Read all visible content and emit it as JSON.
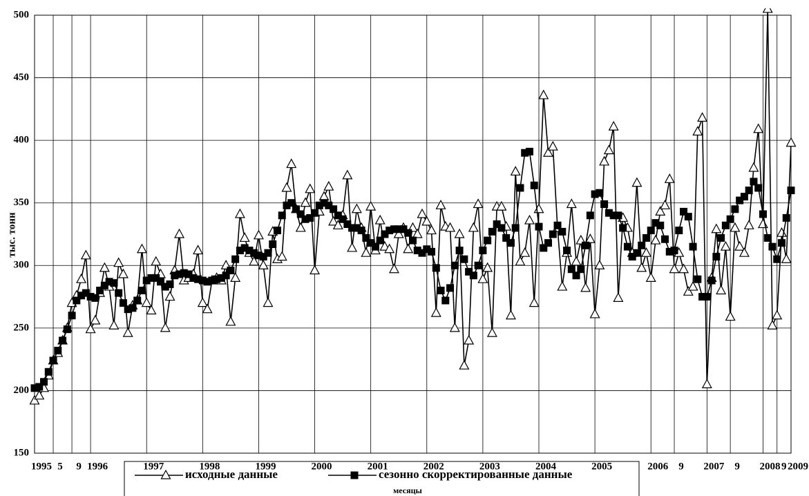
{
  "chart_data": {
    "type": "line",
    "y_label": "тыс. тонн",
    "x_label": "месяцы",
    "xlim": [
      0,
      162
    ],
    "xticks": [
      {
        "value": 0,
        "label": "1995"
      },
      {
        "value": 4,
        "label": "5"
      },
      {
        "value": 8,
        "label": "9"
      },
      {
        "value": 12,
        "label": "1996"
      },
      {
        "value": 24,
        "label": "1997"
      },
      {
        "value": 36,
        "label": "1998"
      },
      {
        "value": 48,
        "label": "1999"
      },
      {
        "value": 60,
        "label": "2000"
      },
      {
        "value": 72,
        "label": "2001"
      },
      {
        "value": 84,
        "label": "2002"
      },
      {
        "value": 96,
        "label": "2003"
      },
      {
        "value": 108,
        "label": "2004"
      },
      {
        "value": 120,
        "label": "2005"
      },
      {
        "value": 132,
        "label": "2006"
      },
      {
        "value": 137,
        "label": "9"
      },
      {
        "value": 144,
        "label": "2007"
      },
      {
        "value": 149,
        "label": "9"
      },
      {
        "value": 156,
        "label": "2008"
      },
      {
        "value": 159,
        "label": "9"
      },
      {
        "value": 162,
        "label": "2009"
      }
    ],
    "ylim": [
      150,
      500
    ],
    "yticks": [
      150,
      200,
      250,
      300,
      350,
      400,
      450,
      500
    ],
    "grid": true,
    "series": [
      {
        "name": "исходные данные",
        "color": "#000000",
        "marker": "triangle",
        "values": [
          192,
          196,
          202,
          212,
          224,
          230,
          240,
          250,
          270,
          276,
          289,
          308,
          249,
          256,
          278,
          298,
          283,
          252,
          302,
          293,
          246,
          268,
          272,
          313,
          270,
          264,
          303,
          293,
          250,
          275,
          296,
          325,
          288,
          290,
          293,
          312,
          270,
          265,
          288,
          290,
          288,
          300,
          255,
          290,
          341,
          322,
          310,
          303,
          324,
          300,
          270,
          327,
          305,
          307,
          362,
          381,
          345,
          330,
          350,
          361,
          296,
          343,
          355,
          363,
          335,
          332,
          340,
          372,
          314,
          345,
          330,
          310,
          347,
          312,
          336,
          315,
          313,
          297,
          325,
          330,
          313,
          330,
          325,
          341,
          335,
          328,
          262,
          348,
          331,
          330,
          250,
          325,
          220,
          240,
          330,
          349,
          289,
          298,
          246,
          347,
          347,
          331,
          260,
          375,
          303,
          310,
          336,
          270,
          345,
          436,
          390,
          395,
          330,
          283,
          310,
          349,
          303,
          320,
          282,
          321,
          261,
          300,
          383,
          392,
          411,
          274,
          338,
          330,
          310,
          366,
          298,
          310,
          290,
          320,
          343,
          348,
          369,
          297,
          310,
          297,
          279,
          283,
          407,
          418,
          205,
          290,
          329,
          280,
          315,
          259,
          330,
          315,
          310,
          332,
          378,
          409,
          333,
          505,
          252,
          260,
          326,
          305,
          398
        ]
      },
      {
        "name": "сезонно скорректированные данные",
        "color": "#000000",
        "marker": "square",
        "values": [
          202,
          203,
          207,
          215,
          224,
          232,
          240,
          249,
          260,
          272,
          276,
          278,
          275,
          274,
          280,
          284,
          287,
          286,
          278,
          270,
          265,
          266,
          272,
          280,
          288,
          290,
          290,
          287,
          283,
          285,
          292,
          293,
          294,
          293,
          290,
          289,
          288,
          287,
          288,
          289,
          290,
          292,
          296,
          305,
          312,
          314,
          312,
          310,
          308,
          307,
          310,
          317,
          328,
          340,
          348,
          350,
          345,
          341,
          337,
          338,
          342,
          348,
          350,
          348,
          345,
          340,
          337,
          333,
          330,
          330,
          328,
          322,
          318,
          315,
          320,
          325,
          328,
          329,
          329,
          329,
          326,
          320,
          312,
          310,
          313,
          311,
          298,
          280,
          272,
          282,
          300,
          312,
          305,
          295,
          292,
          300,
          312,
          320,
          327,
          333,
          330,
          322,
          318,
          330,
          362,
          390,
          391,
          364,
          331,
          314,
          318,
          325,
          332,
          327,
          312,
          297,
          292,
          297,
          316,
          340,
          357,
          358,
          349,
          342,
          340,
          340,
          330,
          315,
          307,
          310,
          316,
          322,
          328,
          334,
          332,
          321,
          311,
          312,
          328,
          343,
          339,
          315,
          289,
          275,
          275,
          288,
          307,
          322,
          332,
          337,
          345,
          352,
          355,
          360,
          367,
          362,
          341,
          322,
          315,
          305,
          318,
          338,
          360
        ]
      }
    ]
  }
}
